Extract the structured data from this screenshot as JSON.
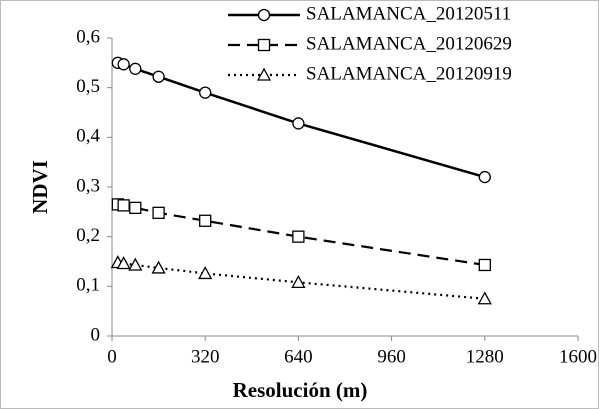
{
  "chart_data": {
    "type": "line",
    "x": [
      20,
      40,
      80,
      160,
      320,
      640,
      1280
    ],
    "series": [
      {
        "name": "SALAMANCA_20120511",
        "color": "#000000",
        "marker": "circle",
        "linestyle": "solid",
        "values": [
          0.55,
          0.547,
          0.538,
          0.522,
          0.49,
          0.428,
          0.32
        ]
      },
      {
        "name": "SALAMANCA_20120629",
        "color": "#000000",
        "marker": "square",
        "linestyle": "dashed",
        "values": [
          0.265,
          0.263,
          0.258,
          0.248,
          0.232,
          0.2,
          0.143
        ]
      },
      {
        "name": "SALAMANCA_20120919",
        "color": "#000000",
        "marker": "triangle",
        "linestyle": "dotted",
        "values": [
          0.148,
          0.146,
          0.143,
          0.137,
          0.126,
          0.108,
          0.075
        ]
      }
    ],
    "xlabel": "Resolución (m)",
    "ylabel": "NDVI",
    "xlim": [
      0,
      1600
    ],
    "xticks": [
      0,
      320,
      640,
      960,
      1280,
      1600
    ],
    "ylim": [
      0,
      0.6
    ],
    "yticks": [
      0,
      {
        "value": 0.1,
        "label": "0,1"
      },
      {
        "value": 0.2,
        "label": "0,2"
      },
      {
        "value": 0.3,
        "label": "0,3"
      },
      {
        "value": 0.4,
        "label": "0,4"
      },
      {
        "value": 0.5,
        "label": "0,5"
      },
      {
        "value": 0.6,
        "label": "0,6"
      }
    ],
    "grid": false,
    "legend": "top-right"
  }
}
